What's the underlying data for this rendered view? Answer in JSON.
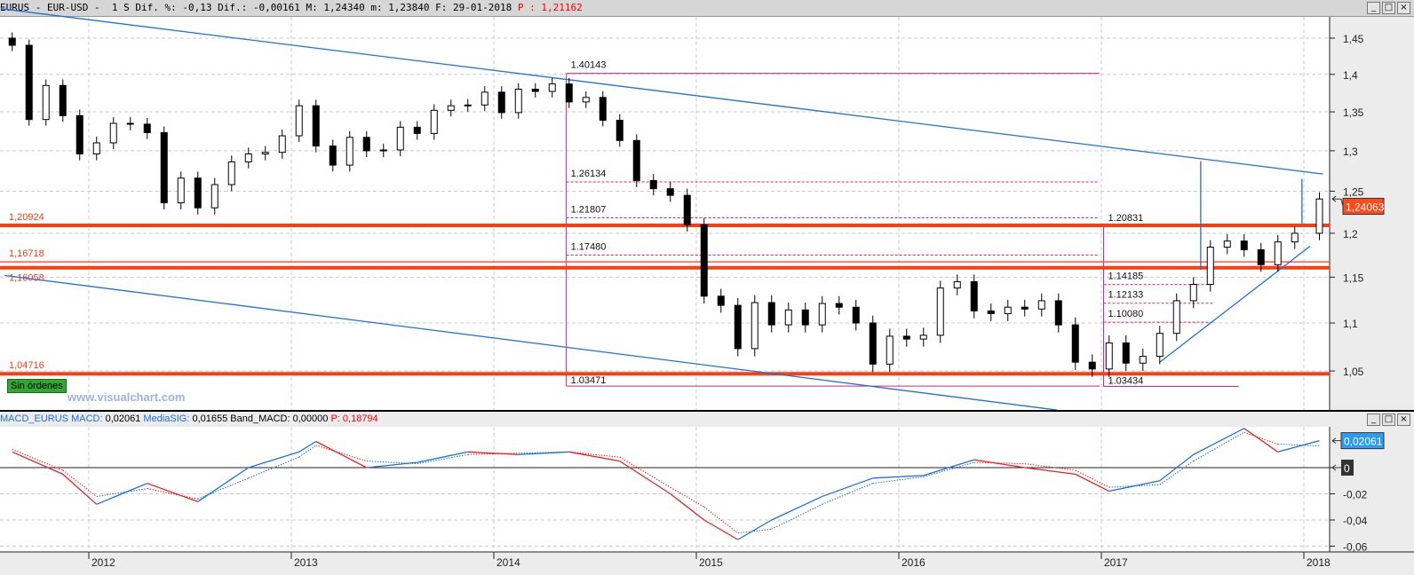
{
  "header": {
    "symbol": "EURUS",
    "sep": "-",
    "name": "EUR-USD",
    "period": "1 S",
    "dif_pct_label": "Dif. %:",
    "dif_pct": "-0,13",
    "dif_label": "Dif.:",
    "dif": "-0,00161",
    "max_label": "M:",
    "max": "1,24340",
    "min_label": "m:",
    "min": "1,23840",
    "date_label": "F:",
    "date": "29-01-2018",
    "p_label": "P :",
    "p": "1,21162"
  },
  "window_buttons": [
    "minimize",
    "maximize",
    "close"
  ],
  "watermark": "www.visualchart.com",
  "orders_badge": "Sin órdenes",
  "macd_header": {
    "indicator": "MACD_EURUS",
    "macd_label": "MACD:",
    "macd": "0,02061",
    "sig_label": "MediaSIG:",
    "sig": "0,01655",
    "band_label": "Band_MACD:",
    "band": "0,00000",
    "p_label": "P:",
    "p": "0,18794"
  },
  "colors": {
    "candle": "#000000",
    "support": "#ff3b10",
    "trendline": "#1e6fe0",
    "fib": "#e8207a",
    "price_tag": "#ff4a1a",
    "macd_tag": "#2d9cf0",
    "macd_up": "#1e6fe0",
    "macd_down": "#f02020"
  },
  "chart_data": [
    {
      "type": "candlestick",
      "period": "weekly",
      "yscale": "log",
      "y_ticks": [
        "1,45",
        "1,4",
        "1,35",
        "1,3",
        "1,25",
        "1,2",
        "1,15",
        "1,1",
        "1,05"
      ],
      "x_ticks": [
        "2012",
        "2013",
        "2014",
        "2015",
        "2016",
        "2017",
        "2018"
      ],
      "current_price": "1,24063",
      "closes": [
        [
          "2011-08",
          1.44
        ],
        [
          "2011-09",
          1.34
        ],
        [
          "2011-10",
          1.385
        ],
        [
          "2011-11",
          1.345
        ],
        [
          "2011-12",
          1.296
        ],
        [
          "2012-01",
          1.31
        ],
        [
          "2012-02",
          1.335
        ],
        [
          "2012-03",
          1.334
        ],
        [
          "2012-04",
          1.323
        ],
        [
          "2012-05",
          1.236
        ],
        [
          "2012-06",
          1.266
        ],
        [
          "2012-07",
          1.23
        ],
        [
          "2012-08",
          1.258
        ],
        [
          "2012-09",
          1.286
        ],
        [
          "2012-10",
          1.296
        ],
        [
          "2012-11",
          1.298
        ],
        [
          "2012-12",
          1.319
        ],
        [
          "2013-01",
          1.358
        ],
        [
          "2013-02",
          1.306
        ],
        [
          "2013-03",
          1.282
        ],
        [
          "2013-04",
          1.317
        ],
        [
          "2013-05",
          1.3
        ],
        [
          "2013-06",
          1.301
        ],
        [
          "2013-07",
          1.33
        ],
        [
          "2013-08",
          1.322
        ],
        [
          "2013-09",
          1.352
        ],
        [
          "2013-10",
          1.358
        ],
        [
          "2013-11",
          1.359
        ],
        [
          "2013-12",
          1.376
        ],
        [
          "2014-01",
          1.349
        ],
        [
          "2014-02",
          1.38
        ],
        [
          "2014-03",
          1.377
        ],
        [
          "2014-04",
          1.387
        ],
        [
          "2014-05",
          1.363
        ],
        [
          "2014-06",
          1.369
        ],
        [
          "2014-07",
          1.339
        ],
        [
          "2014-08",
          1.313
        ],
        [
          "2014-09",
          1.263
        ],
        [
          "2014-10",
          1.253
        ],
        [
          "2014-11",
          1.245
        ],
        [
          "2014-12",
          1.21
        ],
        [
          "2015-01",
          1.129
        ],
        [
          "2015-02",
          1.119
        ],
        [
          "2015-03",
          1.073
        ],
        [
          "2015-04",
          1.122
        ],
        [
          "2015-05",
          1.098
        ],
        [
          "2015-06",
          1.114
        ],
        [
          "2015-07",
          1.098
        ],
        [
          "2015-08",
          1.121
        ],
        [
          "2015-09",
          1.117
        ],
        [
          "2015-10",
          1.1
        ],
        [
          "2015-11",
          1.057
        ],
        [
          "2015-12",
          1.086
        ],
        [
          "2016-01",
          1.083
        ],
        [
          "2016-02",
          1.087
        ],
        [
          "2016-03",
          1.138
        ],
        [
          "2016-04",
          1.145
        ],
        [
          "2016-05",
          1.113
        ],
        [
          "2016-06",
          1.11
        ],
        [
          "2016-07",
          1.117
        ],
        [
          "2016-08",
          1.115
        ],
        [
          "2016-09",
          1.124
        ],
        [
          "2016-10",
          1.098
        ],
        [
          "2016-11",
          1.059
        ],
        [
          "2016-12",
          1.052
        ],
        [
          "2017-01",
          1.079
        ],
        [
          "2017-02",
          1.058
        ],
        [
          "2017-03",
          1.065
        ],
        [
          "2017-04",
          1.089
        ],
        [
          "2017-05",
          1.124
        ],
        [
          "2017-06",
          1.142
        ],
        [
          "2017-07",
          1.184
        ],
        [
          "2017-08",
          1.191
        ],
        [
          "2017-09",
          1.181
        ],
        [
          "2017-10",
          1.164
        ],
        [
          "2017-11",
          1.19
        ],
        [
          "2017-12",
          1.2
        ],
        [
          "2018-01-29",
          1.2406
        ]
      ],
      "horizontal_levels": [
        {
          "label": "1,20924",
          "value": 1.20924,
          "style": "thick"
        },
        {
          "label": "1,16718",
          "value": 1.16718,
          "style": "thin"
        },
        {
          "label": "1,16058",
          "value": 1.16058,
          "style": "thick"
        },
        {
          "label": "1,04716",
          "value": 1.04716,
          "style": "thick"
        }
      ],
      "trendlines": [
        {
          "from": [
            "2011-07-25",
            1.492
          ],
          "to": [
            "2018-02-05",
            1.271
          ]
        },
        {
          "from": [
            "2011-08-01",
            1.152
          ],
          "to": [
            "2016-10-12",
            1.011
          ]
        },
        {
          "from": [
            "2017-04-15",
            1.059
          ],
          "to": [
            "2018-01-12",
            1.185
          ]
        },
        {
          "from": [
            "2017-06-28",
            1.287
          ],
          "to": [
            "2017-06-28",
            1.158
          ]
        },
        {
          "from": [
            "2017-12-28",
            1.265
          ],
          "to": [
            "2017-12-28",
            1.21
          ]
        }
      ],
      "fibonacci": [
        {
          "start": "2014-05-10",
          "end": "2016-12-28",
          "high": {
            "label": "1.40143",
            "value": 1.40143
          },
          "low": {
            "label": "1.03471",
            "value": 1.03471
          },
          "levels": [
            {
              "label": "1.26134",
              "value": 1.26134
            },
            {
              "label": "1.21807",
              "value": 1.21807
            },
            {
              "label": "1.17480",
              "value": 1.1748
            }
          ]
        },
        {
          "start": "2017-01-05",
          "end": "2017-09-05",
          "levels_end": "2017-07-20",
          "high": {
            "label": "1.20831",
            "value": 1.20831
          },
          "low": {
            "label": "1.03434",
            "value": 1.03434
          },
          "levels": [
            {
              "label": "1.14185",
              "value": 1.14185
            },
            {
              "label": "1.12133",
              "value": 1.12133
            },
            {
              "label": "1.10080",
              "value": 1.1008
            }
          ]
        }
      ]
    },
    {
      "type": "line",
      "indicator": "MACD",
      "y_ticks": [
        "0",
        "-0,02",
        "-0,04",
        "-0,06"
      ],
      "zero_tag": "0",
      "current_macd": "0,02061",
      "points": [
        [
          "2011-08",
          0.012,
          0.014
        ],
        [
          "2011-11",
          -0.005,
          -0.002
        ],
        [
          "2012-01",
          -0.028,
          -0.022
        ],
        [
          "2012-04",
          -0.012,
          -0.016
        ],
        [
          "2012-07",
          -0.026,
          -0.024
        ],
        [
          "2012-10",
          0.0,
          -0.008
        ],
        [
          "2013-01",
          0.012,
          0.008
        ],
        [
          "2013-02",
          0.02,
          0.017
        ],
        [
          "2013-05",
          0.0,
          0.005
        ],
        [
          "2013-08",
          0.004,
          0.003
        ],
        [
          "2013-11",
          0.012,
          0.01
        ],
        [
          "2014-02",
          0.01,
          0.011
        ],
        [
          "2014-05",
          0.012,
          0.012
        ],
        [
          "2014-08",
          0.005,
          0.008
        ],
        [
          "2014-11",
          -0.02,
          -0.015
        ],
        [
          "2015-01",
          -0.04,
          -0.03
        ],
        [
          "2015-03",
          -0.055,
          -0.05
        ],
        [
          "2015-05",
          -0.04,
          -0.047
        ],
        [
          "2015-08",
          -0.022,
          -0.028
        ],
        [
          "2015-11",
          -0.008,
          -0.012
        ],
        [
          "2016-02",
          -0.006,
          -0.007
        ],
        [
          "2016-05",
          0.006,
          0.004
        ],
        [
          "2016-08",
          0.0,
          0.003
        ],
        [
          "2016-11",
          -0.005,
          -0.002
        ],
        [
          "2017-01",
          -0.018,
          -0.015
        ],
        [
          "2017-04",
          -0.01,
          -0.013
        ],
        [
          "2017-06",
          0.01,
          0.005
        ],
        [
          "2017-09",
          0.03,
          0.027
        ],
        [
          "2017-11",
          0.012,
          0.018
        ],
        [
          "2018-01-29",
          0.02061,
          0.01655
        ]
      ]
    }
  ]
}
